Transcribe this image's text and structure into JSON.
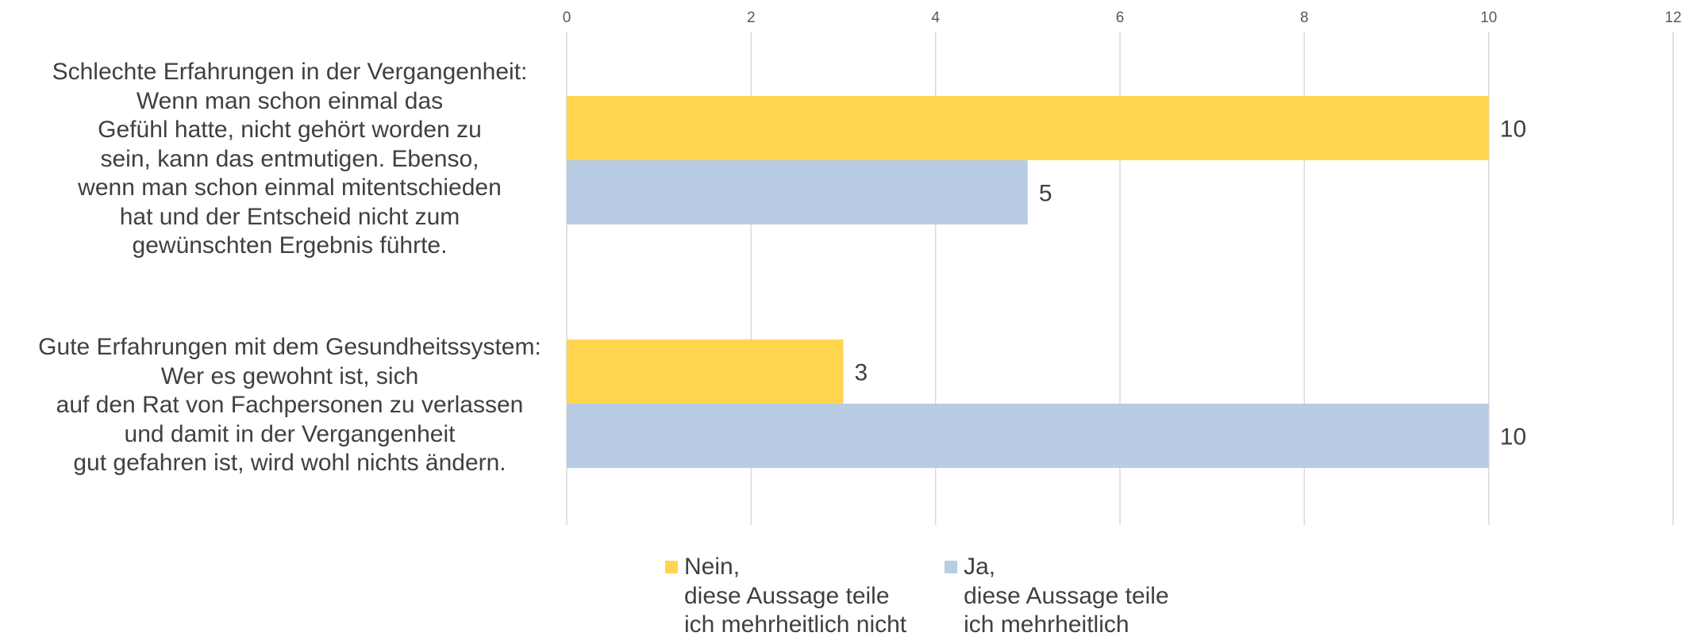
{
  "chart_data": {
    "type": "bar",
    "orientation": "horizontal",
    "categories": [
      "Schlechte Erfahrungen in der Vergangenheit:\nWenn man schon einmal das\nGefühl hatte, nicht gehört worden zu\nsein, kann das entmutigen. Ebenso,\nwenn man schon einmal mitentschieden\nhat und der Entscheid nicht zum\ngewünschten Ergebnis führte.",
      "Gute Erfahrungen mit dem Gesundheitssystem:\nWer es gewohnt ist, sich\nauf den Rat von Fachpersonen zu verlassen\nund damit in der Vergangenheit\ngut gefahren ist, wird wohl nichts ändern."
    ],
    "series": [
      {
        "name": "Nein,\ndiese Aussage teile\nich mehrheitlich nicht",
        "color": "#FFD54F",
        "values": [
          10,
          3
        ]
      },
      {
        "name": "Ja,\ndiese Aussage teile\nich mehrheitlich",
        "color": "#B8CCE4",
        "values": [
          5,
          10
        ]
      }
    ],
    "xlim": [
      0,
      12
    ],
    "xticks": [
      "0",
      "2",
      "4",
      "6",
      "8",
      "10",
      "12"
    ],
    "x_axis_position": "top",
    "grid": true,
    "data_labels": true,
    "legend_position": "bottom"
  }
}
